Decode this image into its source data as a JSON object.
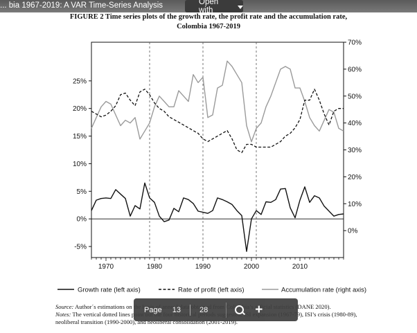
{
  "viewer": {
    "doc_title": "... bia 1967-2019: A VAR Time-Series Analysis",
    "open_with": "Open with",
    "pager": {
      "label": "Page",
      "current": "13",
      "total": "28"
    }
  },
  "figure": {
    "title_line1": "FIGURE 2 Time series plots of the growth rate, the profit rate and the accumulation rate,",
    "title_line2": "Colombia 1967-2019",
    "source_label": "Source:",
    "source_text": " Author´s estimations on the basis of annual data obtained from Colombia’s official statistics (DANE 2020).",
    "notes_label": "Notes:",
    "notes_text": " The vertical dotted lines point out the four historical periods suggested: ISI expansion (1967-79), ISI’s crisis (1980-89), neoliberal transition (1990-2000), and neoliberal consolidation (2001-2019)."
  },
  "chart_data": {
    "type": "line",
    "x": [
      1967,
      1968,
      1969,
      1970,
      1971,
      1972,
      1973,
      1974,
      1975,
      1976,
      1977,
      1978,
      1979,
      1980,
      1981,
      1982,
      1983,
      1984,
      1985,
      1986,
      1987,
      1988,
      1989,
      1990,
      1991,
      1992,
      1993,
      1994,
      1995,
      1996,
      1997,
      1998,
      1999,
      2000,
      2001,
      2002,
      2003,
      2004,
      2005,
      2006,
      2007,
      2008,
      2009,
      2010,
      2011,
      2012,
      2013,
      2014,
      2015,
      2016,
      2017,
      2018,
      2019
    ],
    "left_axis": {
      "ylim": [
        -7,
        32
      ],
      "ticks": [
        "-5%",
        "0%",
        "5%",
        "10%",
        "15%",
        "20%",
        "25%"
      ]
    },
    "right_axis": {
      "ylim": [
        -10,
        70
      ],
      "ticks": [
        "0%",
        "10%",
        "20%",
        "30%",
        "40%",
        "50%",
        "60%",
        "70%"
      ]
    },
    "x_ticks": [
      "1970",
      "1980",
      "1990",
      "2000",
      "2010"
    ],
    "vertical_lines": [
      1979,
      1990,
      2001
    ],
    "series": [
      {
        "name": "Growth rate (left axis)",
        "axis": "left",
        "style": "solid",
        "values": [
          1.5,
          3.4,
          3.7,
          3.8,
          3.7,
          5.3,
          4.5,
          3.7,
          0.5,
          2.4,
          1.8,
          6.5,
          3.8,
          3.0,
          0.5,
          -0.5,
          -0.2,
          1.9,
          1.3,
          3.8,
          3.5,
          2.8,
          1.4,
          1.2,
          1.0,
          1.5,
          3.8,
          3.5,
          3.1,
          2.6,
          1.5,
          0.6,
          -5.9,
          0.0,
          1.5,
          0.8,
          3.1,
          3.0,
          3.5,
          5.4,
          5.5,
          2.0,
          0.2,
          3.4,
          5.8,
          3.0,
          4.2,
          3.8,
          2.3,
          1.4,
          0.5,
          0.8,
          0.9
        ]
      },
      {
        "name": "Rate of profit (left axis)",
        "axis": "left",
        "style": "dashed",
        "values": [
          19.5,
          19.0,
          18.5,
          18.8,
          19.5,
          20.5,
          22.5,
          22.8,
          21.5,
          20.5,
          23.0,
          23.5,
          22.5,
          21.0,
          20.0,
          19.5,
          18.5,
          18.0,
          17.5,
          17.0,
          16.5,
          16.0,
          15.5,
          14.5,
          14.0,
          14.5,
          15.0,
          15.5,
          16.0,
          14.5,
          12.5,
          12.0,
          13.5,
          13.5,
          13.0,
          13.0,
          13.0,
          13.0,
          13.5,
          14.0,
          15.0,
          15.5,
          16.5,
          18.0,
          21.5,
          21.5,
          23.5,
          21.5,
          19.0,
          17.0,
          19.5,
          20.0,
          20.0
        ]
      },
      {
        "name": "Accumulation rate (right axis)",
        "axis": "right",
        "style": "gray",
        "values": [
          38,
          42,
          46,
          48,
          47,
          43,
          39,
          41,
          40,
          42,
          34,
          37,
          40,
          46,
          50,
          48,
          46,
          46,
          52,
          50,
          48,
          58,
          55,
          57,
          42,
          43,
          53,
          54,
          63,
          61,
          58,
          55,
          39,
          33,
          38,
          40,
          46,
          50,
          55,
          60,
          61,
          60,
          53,
          53,
          48,
          42,
          39,
          37,
          41,
          45,
          44,
          38,
          37
        ]
      }
    ]
  },
  "colors": {
    "growth": "#111111",
    "profit": "#111111",
    "accumulation": "#9a9a9a"
  }
}
